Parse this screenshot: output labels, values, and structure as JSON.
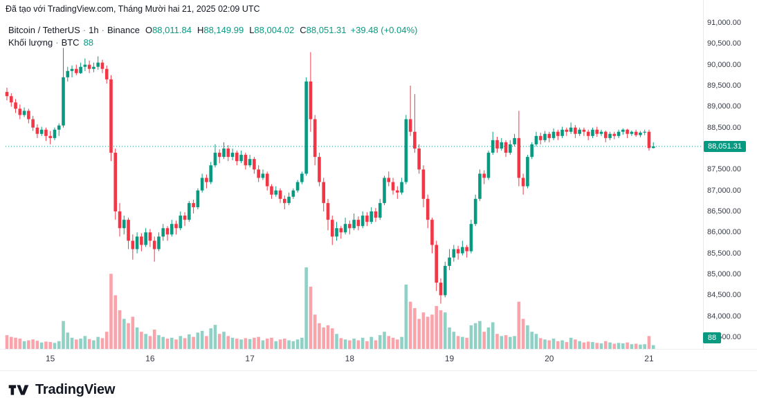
{
  "attribution": "Đã tạo với TradingView.com, Tháng Mười hai 21, 2025 02:09 UTC",
  "legend": {
    "symbol": "Bitcoin / TetherUS",
    "separator": "·",
    "interval": "1h",
    "exchange": "Binance",
    "o_label": "O",
    "o_value": "88,011.84",
    "h_label": "H",
    "h_value": "88,149.99",
    "l_label": "L",
    "l_value": "88,004.02",
    "c_label": "C",
    "c_value": "88,051.31",
    "change": "+39.48 (+0.04%)",
    "volume_label": "Khối lượng",
    "volume_unit": "BTC",
    "volume_value": "88"
  },
  "badges": {
    "last_price": "88,051.31",
    "volume": "88"
  },
  "footer": {
    "logo_text": "TradingView"
  },
  "colors": {
    "up": "#089981",
    "down": "#F23645",
    "vol_up": "rgba(8,153,129,0.45)",
    "vol_down": "rgba(242,54,69,0.45)",
    "axis_text": "#363a45",
    "text": "#131722",
    "muted": "#787b86",
    "border": "#e6e8ec",
    "badge_text": "#ffffff"
  },
  "chart_data": {
    "type": "candlestick",
    "title": "Bitcoin / TetherUS · 1h · Binance",
    "volume_unit": "BTC",
    "last_price": 88051.31,
    "change": 39.48,
    "change_pct": 0.04,
    "last_volume": 88,
    "y_axis": {
      "min": 83500,
      "max": 91000,
      "step": 500
    },
    "x_labels": [
      {
        "text": "15",
        "index": 10
      },
      {
        "text": "16",
        "index": 33
      },
      {
        "text": "17",
        "index": 56
      },
      {
        "text": "18",
        "index": 79
      },
      {
        "text": "19",
        "index": 102
      },
      {
        "text": "20",
        "index": 125
      },
      {
        "text": "21",
        "index": 148
      }
    ],
    "candles_format": [
      "open",
      "high",
      "low",
      "close",
      "volume"
    ],
    "candles": [
      [
        89350,
        89450,
        89150,
        89250,
        320
      ],
      [
        89250,
        89320,
        89000,
        89100,
        280
      ],
      [
        89100,
        89180,
        88850,
        88950,
        260
      ],
      [
        88950,
        89050,
        88700,
        88800,
        240
      ],
      [
        88800,
        88980,
        88750,
        88900,
        180
      ],
      [
        88900,
        88950,
        88600,
        88700,
        200
      ],
      [
        88700,
        88780,
        88420,
        88500,
        220
      ],
      [
        88500,
        88580,
        88250,
        88350,
        190
      ],
      [
        88350,
        88520,
        88300,
        88450,
        150
      ],
      [
        88450,
        88500,
        88180,
        88300,
        170
      ],
      [
        88300,
        88420,
        88100,
        88250,
        160
      ],
      [
        88250,
        88500,
        88200,
        88450,
        140
      ],
      [
        88450,
        88600,
        88300,
        88550,
        180
      ],
      [
        88550,
        90400,
        88500,
        89700,
        650
      ],
      [
        89700,
        89950,
        89600,
        89850,
        380
      ],
      [
        89850,
        89980,
        89700,
        89900,
        260
      ],
      [
        89900,
        90000,
        89750,
        89800,
        220
      ],
      [
        89800,
        90050,
        89780,
        89950,
        240
      ],
      [
        89950,
        90150,
        89850,
        90000,
        300
      ],
      [
        90000,
        90100,
        89800,
        89900,
        230
      ],
      [
        89900,
        90050,
        89820,
        89950,
        200
      ],
      [
        89950,
        90200,
        89880,
        90050,
        280
      ],
      [
        90050,
        90120,
        89800,
        89900,
        250
      ],
      [
        89900,
        89980,
        89550,
        89650,
        400
      ],
      [
        89650,
        89750,
        87700,
        87900,
        1750
      ],
      [
        87900,
        88000,
        86300,
        86500,
        1250
      ],
      [
        86500,
        86700,
        85900,
        86100,
        900
      ],
      [
        86100,
        86400,
        85950,
        86300,
        700
      ],
      [
        86300,
        86350,
        85600,
        85800,
        600
      ],
      [
        85800,
        85950,
        85350,
        85600,
        750
      ],
      [
        85600,
        86000,
        85500,
        85900,
        500
      ],
      [
        85900,
        85980,
        85550,
        85700,
        400
      ],
      [
        85700,
        86100,
        85650,
        86000,
        350
      ],
      [
        86000,
        86080,
        85650,
        85800,
        300
      ],
      [
        85800,
        85900,
        85300,
        85600,
        450
      ],
      [
        85600,
        86000,
        85550,
        85900,
        320
      ],
      [
        85900,
        86200,
        85800,
        86100,
        280
      ],
      [
        86100,
        86150,
        85800,
        85950,
        240
      ],
      [
        85950,
        86300,
        85900,
        86200,
        260
      ],
      [
        86200,
        86280,
        85950,
        86100,
        220
      ],
      [
        86100,
        86500,
        86050,
        86400,
        300
      ],
      [
        86400,
        86480,
        86150,
        86300,
        250
      ],
      [
        86300,
        86750,
        86250,
        86700,
        340
      ],
      [
        86700,
        86780,
        86450,
        86600,
        280
      ],
      [
        86600,
        87050,
        86550,
        87000,
        380
      ],
      [
        87000,
        87400,
        86950,
        87300,
        420
      ],
      [
        87300,
        87380,
        87050,
        87200,
        300
      ],
      [
        87200,
        87680,
        87150,
        87600,
        480
      ],
      [
        87600,
        88100,
        87550,
        87900,
        560
      ],
      [
        87900,
        87980,
        87650,
        87800,
        350
      ],
      [
        87800,
        88150,
        87750,
        88000,
        400
      ],
      [
        88000,
        88080,
        87700,
        87800,
        300
      ],
      [
        87800,
        88000,
        87720,
        87900,
        260
      ],
      [
        87900,
        87950,
        87600,
        87700,
        240
      ],
      [
        87700,
        87950,
        87650,
        87850,
        220
      ],
      [
        87850,
        87900,
        87500,
        87600,
        250
      ],
      [
        87600,
        87850,
        87550,
        87750,
        230
      ],
      [
        87750,
        87800,
        87400,
        87500,
        260
      ],
      [
        87500,
        87600,
        87200,
        87300,
        280
      ],
      [
        87300,
        87500,
        87250,
        87400,
        200
      ],
      [
        87400,
        87450,
        87000,
        87100,
        240
      ],
      [
        87100,
        87150,
        86800,
        86900,
        260
      ],
      [
        86900,
        87100,
        86850,
        87000,
        180
      ],
      [
        87000,
        87050,
        86700,
        86800,
        220
      ],
      [
        86800,
        86880,
        86550,
        86700,
        240
      ],
      [
        86700,
        86950,
        86650,
        86850,
        200
      ],
      [
        86850,
        87050,
        86800,
        87000,
        180
      ],
      [
        87000,
        87250,
        86950,
        87200,
        220
      ],
      [
        87200,
        87450,
        87150,
        87400,
        260
      ],
      [
        87400,
        89700,
        87350,
        89600,
        1900
      ],
      [
        89600,
        90300,
        88400,
        88700,
        1450
      ],
      [
        88700,
        88800,
        87600,
        87800,
        800
      ],
      [
        87800,
        87900,
        87100,
        87200,
        600
      ],
      [
        87200,
        87300,
        86500,
        86700,
        500
      ],
      [
        86700,
        86800,
        86050,
        86300,
        550
      ],
      [
        86300,
        86400,
        85700,
        85900,
        480
      ],
      [
        85900,
        86250,
        85800,
        86100,
        350
      ],
      [
        86100,
        86150,
        85850,
        86000,
        250
      ],
      [
        86000,
        86350,
        85950,
        86200,
        220
      ],
      [
        86200,
        86280,
        85950,
        86100,
        200
      ],
      [
        86100,
        86450,
        86050,
        86300,
        240
      ],
      [
        86300,
        86380,
        86050,
        86150,
        200
      ],
      [
        86150,
        86500,
        86100,
        86400,
        260
      ],
      [
        86400,
        86480,
        86150,
        86250,
        180
      ],
      [
        86250,
        86600,
        86200,
        86500,
        280
      ],
      [
        86500,
        86580,
        86250,
        86350,
        200
      ],
      [
        86350,
        86800,
        86300,
        86700,
        320
      ],
      [
        86700,
        87350,
        86650,
        87300,
        400
      ],
      [
        87300,
        87450,
        87100,
        87200,
        300
      ],
      [
        87200,
        87300,
        86900,
        87000,
        260
      ],
      [
        87000,
        87100,
        86800,
        86950,
        220
      ],
      [
        86950,
        87300,
        86900,
        87200,
        280
      ],
      [
        87200,
        88800,
        87150,
        88700,
        1500
      ],
      [
        88700,
        89500,
        88300,
        88400,
        1100
      ],
      [
        88400,
        89300,
        87900,
        88000,
        950
      ],
      [
        88000,
        88100,
        87400,
        87500,
        700
      ],
      [
        87500,
        87600,
        86600,
        86800,
        850
      ],
      [
        86800,
        86900,
        86100,
        86300,
        750
      ],
      [
        86300,
        86350,
        85500,
        85700,
        800
      ],
      [
        85700,
        85800,
        84600,
        84800,
        1000
      ],
      [
        84800,
        84900,
        84300,
        84500,
        900
      ],
      [
        84500,
        85300,
        84450,
        85200,
        850
      ],
      [
        85200,
        85600,
        85100,
        85400,
        500
      ],
      [
        85400,
        85700,
        85300,
        85600,
        400
      ],
      [
        85600,
        85680,
        85350,
        85500,
        300
      ],
      [
        85500,
        85800,
        85450,
        85650,
        280
      ],
      [
        85650,
        85700,
        85400,
        85550,
        260
      ],
      [
        85550,
        86300,
        85500,
        86200,
        550
      ],
      [
        86200,
        86900,
        86150,
        86800,
        600
      ],
      [
        86800,
        87500,
        86750,
        87400,
        650
      ],
      [
        87400,
        87480,
        87150,
        87300,
        400
      ],
      [
        87300,
        87950,
        87250,
        87900,
        500
      ],
      [
        87900,
        88400,
        87850,
        88200,
        620
      ],
      [
        88200,
        88280,
        87900,
        88000,
        350
      ],
      [
        88000,
        88250,
        87950,
        88150,
        300
      ],
      [
        88150,
        88200,
        87800,
        87900,
        320
      ],
      [
        87900,
        88200,
        87850,
        88100,
        280
      ],
      [
        88100,
        88350,
        88050,
        88250,
        300
      ],
      [
        88250,
        88900,
        87100,
        87300,
        1100
      ],
      [
        87300,
        87400,
        86900,
        87100,
        700
      ],
      [
        87100,
        87850,
        87050,
        87800,
        550
      ],
      [
        87800,
        88150,
        87750,
        88100,
        400
      ],
      [
        88100,
        88400,
        88050,
        88300,
        350
      ],
      [
        88300,
        88380,
        88100,
        88200,
        250
      ],
      [
        88200,
        88420,
        88150,
        88350,
        220
      ],
      [
        88350,
        88400,
        88150,
        88250,
        200
      ],
      [
        88250,
        88480,
        88200,
        88400,
        240
      ],
      [
        88400,
        88450,
        88200,
        88300,
        180
      ],
      [
        88300,
        88520,
        88250,
        88450,
        200
      ],
      [
        88450,
        88500,
        88300,
        88400,
        160
      ],
      [
        88400,
        88620,
        88350,
        88500,
        260
      ],
      [
        88500,
        88560,
        88250,
        88350,
        220
      ],
      [
        88350,
        88500,
        88300,
        88450,
        180
      ],
      [
        88450,
        88500,
        88300,
        88400,
        150
      ],
      [
        88400,
        88450,
        88200,
        88300,
        170
      ],
      [
        88300,
        88500,
        88250,
        88450,
        160
      ],
      [
        88450,
        88520,
        88280,
        88350,
        140
      ],
      [
        88350,
        88450,
        88300,
        88400,
        130
      ],
      [
        88400,
        88430,
        88150,
        88250,
        180
      ],
      [
        88250,
        88400,
        88200,
        88350,
        150
      ],
      [
        88350,
        88400,
        88220,
        88300,
        120
      ],
      [
        88300,
        88450,
        88250,
        88400,
        140
      ],
      [
        88400,
        88480,
        88330,
        88450,
        130
      ],
      [
        88450,
        88470,
        88250,
        88350,
        150
      ],
      [
        88350,
        88430,
        88300,
        88400,
        110
      ],
      [
        88400,
        88450,
        88280,
        88320,
        120
      ],
      [
        88320,
        88420,
        88270,
        88380,
        100
      ],
      [
        88380,
        88450,
        88320,
        88400,
        110
      ],
      [
        88400,
        88450,
        87950,
        88011.84,
        300
      ],
      [
        88011.84,
        88149.99,
        88004.02,
        88051.31,
        88
      ]
    ]
  }
}
